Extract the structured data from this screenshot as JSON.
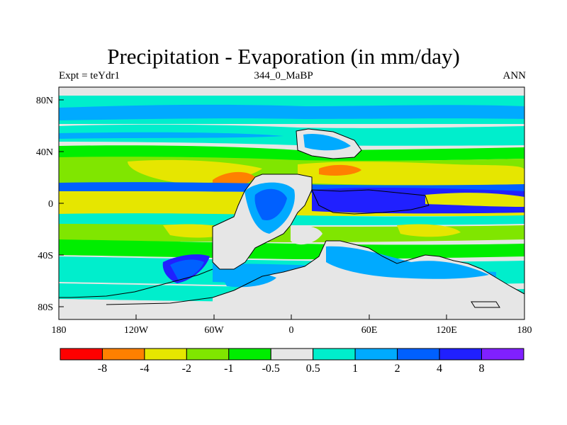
{
  "title": "Precipitation - Evaporation (in mm/day)",
  "subtitle_left": "Expt = teYdr1",
  "subtitle_center": "344_0_MaBP",
  "subtitle_right": "ANN",
  "lat_labels": [
    "80N",
    "40N",
    "0",
    "40S",
    "80S"
  ],
  "lon_labels": [
    "180",
    "120W",
    "60W",
    "0",
    "60E",
    "120E",
    "180"
  ],
  "colorbar": {
    "colors": [
      "#ff0000",
      "#ff8000",
      "#e6e600",
      "#80e600",
      "#00ee00",
      "#e6e6e6",
      "#00eecc",
      "#00aaff",
      "#0060ff",
      "#2020ff",
      "#8020ff"
    ],
    "labels": [
      "-8",
      "-4",
      "-2",
      "-1",
      "-0.5",
      "0.5",
      "1",
      "2",
      "4",
      "8"
    ]
  }
}
